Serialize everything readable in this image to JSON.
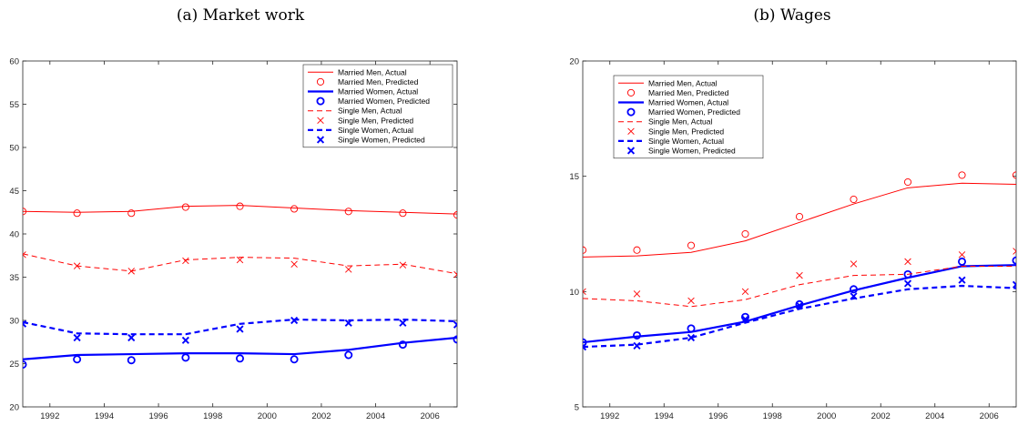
{
  "chart_data": [
    {
      "type": "line",
      "title": "(a) Market work",
      "xlabel": "",
      "ylabel": "",
      "xlim": [
        1991,
        2007
      ],
      "ylim": [
        20,
        60
      ],
      "xticks": [
        1992,
        1994,
        1996,
        1998,
        2000,
        2002,
        2004,
        2006
      ],
      "yticks": [
        20,
        25,
        30,
        35,
        40,
        45,
        50,
        55,
        60
      ],
      "grid": false,
      "legend_position": "top-right",
      "x": [
        1991,
        1993,
        1995,
        1997,
        1999,
        2001,
        2003,
        2005,
        2007
      ],
      "series": [
        {
          "name": "Married Men, Actual",
          "style": "solid-thin",
          "color": "#ff0000",
          "marker": "none",
          "values": [
            42.6,
            42.5,
            42.6,
            43.2,
            43.3,
            43.0,
            42.7,
            42.5,
            42.3
          ]
        },
        {
          "name": "Married Men, Predicted",
          "style": "marker",
          "color": "#ff0000",
          "marker": "circle",
          "values": [
            42.6,
            42.4,
            42.4,
            43.1,
            43.2,
            42.9,
            42.6,
            42.4,
            42.2
          ]
        },
        {
          "name": "Married Women, Actual",
          "style": "solid-thick",
          "color": "#0000ff",
          "marker": "none",
          "values": [
            25.5,
            26.0,
            26.1,
            26.2,
            26.2,
            26.1,
            26.6,
            27.4,
            28.0
          ]
        },
        {
          "name": "Married Women, Predicted",
          "style": "marker",
          "color": "#0000ff",
          "marker": "circle",
          "values": [
            24.9,
            25.5,
            25.4,
            25.7,
            25.6,
            25.5,
            26.0,
            27.2,
            27.8
          ]
        },
        {
          "name": "Single Men, Actual",
          "style": "dashed-thin",
          "color": "#ff0000",
          "marker": "none",
          "values": [
            37.7,
            36.3,
            35.7,
            37.0,
            37.3,
            37.2,
            36.3,
            36.5,
            35.4
          ]
        },
        {
          "name": "Single Men, Predicted",
          "style": "marker",
          "color": "#ff0000",
          "marker": "x",
          "values": [
            37.6,
            36.3,
            35.7,
            36.9,
            37.0,
            36.5,
            35.9,
            36.4,
            35.3
          ]
        },
        {
          "name": "Single Women, Actual",
          "style": "dashed-thick",
          "color": "#0000ff",
          "marker": "none",
          "values": [
            29.8,
            28.5,
            28.4,
            28.4,
            29.6,
            30.1,
            30.0,
            30.1,
            29.9
          ]
        },
        {
          "name": "Single Women, Predicted",
          "style": "marker",
          "color": "#0000ff",
          "marker": "x",
          "values": [
            29.6,
            28.0,
            28.0,
            27.7,
            29.0,
            30.0,
            29.7,
            29.7,
            29.5
          ]
        }
      ]
    },
    {
      "type": "line",
      "title": "(b) Wages",
      "xlabel": "",
      "ylabel": "",
      "xlim": [
        1991,
        2007
      ],
      "ylim": [
        5,
        20
      ],
      "xticks": [
        1992,
        1994,
        1996,
        1998,
        2000,
        2002,
        2004,
        2006
      ],
      "yticks": [
        5,
        10,
        15,
        20
      ],
      "grid": false,
      "legend_position": "top-left",
      "x": [
        1991,
        1993,
        1995,
        1997,
        1999,
        2001,
        2003,
        2005,
        2007
      ],
      "series": [
        {
          "name": "Married Men, Actual",
          "style": "solid-thin",
          "color": "#ff0000",
          "marker": "none",
          "values": [
            11.5,
            11.55,
            11.7,
            12.2,
            13.0,
            13.8,
            14.5,
            14.7,
            14.65
          ]
        },
        {
          "name": "Married Men, Predicted",
          "style": "marker",
          "color": "#ff0000",
          "marker": "circle",
          "values": [
            11.8,
            11.8,
            12.0,
            12.5,
            13.25,
            14.0,
            14.75,
            15.05,
            15.05
          ]
        },
        {
          "name": "Married Women, Actual",
          "style": "solid-thick",
          "color": "#0000ff",
          "marker": "none",
          "values": [
            7.8,
            8.05,
            8.25,
            8.7,
            9.4,
            10.05,
            10.6,
            11.1,
            11.15
          ]
        },
        {
          "name": "Married Women, Predicted",
          "style": "marker",
          "color": "#0000ff",
          "marker": "circle",
          "values": [
            7.8,
            8.1,
            8.4,
            8.9,
            9.45,
            10.1,
            10.75,
            11.3,
            11.35
          ]
        },
        {
          "name": "Single Men, Actual",
          "style": "dashed-thin",
          "color": "#ff0000",
          "marker": "none",
          "values": [
            9.7,
            9.6,
            9.35,
            9.65,
            10.3,
            10.7,
            10.75,
            11.1,
            11.1
          ]
        },
        {
          "name": "Single Men, Predicted",
          "style": "marker",
          "color": "#ff0000",
          "marker": "x",
          "values": [
            10.0,
            9.9,
            9.6,
            10.0,
            10.7,
            11.2,
            11.3,
            11.6,
            11.75
          ]
        },
        {
          "name": "Single Women, Actual",
          "style": "dashed-thick",
          "color": "#0000ff",
          "marker": "none",
          "values": [
            7.6,
            7.7,
            8.0,
            8.65,
            9.25,
            9.7,
            10.1,
            10.25,
            10.15
          ]
        },
        {
          "name": "Single Women, Predicted",
          "style": "marker",
          "color": "#0000ff",
          "marker": "x",
          "values": [
            7.6,
            7.65,
            8.0,
            8.8,
            9.4,
            9.8,
            10.35,
            10.5,
            10.3
          ]
        }
      ]
    }
  ]
}
